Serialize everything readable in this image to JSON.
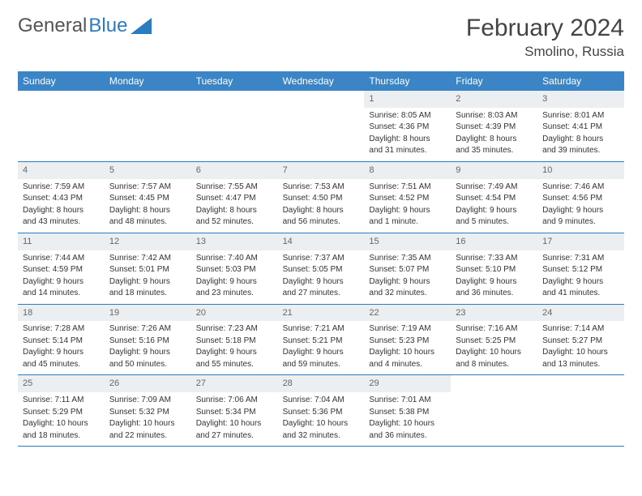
{
  "brand": {
    "part1": "General",
    "part2": "Blue"
  },
  "title": "February 2024",
  "location": "Smolino, Russia",
  "colors": {
    "header_bg": "#3b85c6",
    "row_border": "#2b7bbf",
    "daynum_bg": "#eceff1",
    "text": "#333333"
  },
  "weekdays": [
    "Sunday",
    "Monday",
    "Tuesday",
    "Wednesday",
    "Thursday",
    "Friday",
    "Saturday"
  ],
  "weeks": [
    [
      {
        "empty": true
      },
      {
        "empty": true
      },
      {
        "empty": true
      },
      {
        "empty": true
      },
      {
        "n": "1",
        "sr": "Sunrise: 8:05 AM",
        "ss": "Sunset: 4:36 PM",
        "d1": "Daylight: 8 hours",
        "d2": "and 31 minutes."
      },
      {
        "n": "2",
        "sr": "Sunrise: 8:03 AM",
        "ss": "Sunset: 4:39 PM",
        "d1": "Daylight: 8 hours",
        "d2": "and 35 minutes."
      },
      {
        "n": "3",
        "sr": "Sunrise: 8:01 AM",
        "ss": "Sunset: 4:41 PM",
        "d1": "Daylight: 8 hours",
        "d2": "and 39 minutes."
      }
    ],
    [
      {
        "n": "4",
        "sr": "Sunrise: 7:59 AM",
        "ss": "Sunset: 4:43 PM",
        "d1": "Daylight: 8 hours",
        "d2": "and 43 minutes."
      },
      {
        "n": "5",
        "sr": "Sunrise: 7:57 AM",
        "ss": "Sunset: 4:45 PM",
        "d1": "Daylight: 8 hours",
        "d2": "and 48 minutes."
      },
      {
        "n": "6",
        "sr": "Sunrise: 7:55 AM",
        "ss": "Sunset: 4:47 PM",
        "d1": "Daylight: 8 hours",
        "d2": "and 52 minutes."
      },
      {
        "n": "7",
        "sr": "Sunrise: 7:53 AM",
        "ss": "Sunset: 4:50 PM",
        "d1": "Daylight: 8 hours",
        "d2": "and 56 minutes."
      },
      {
        "n": "8",
        "sr": "Sunrise: 7:51 AM",
        "ss": "Sunset: 4:52 PM",
        "d1": "Daylight: 9 hours",
        "d2": "and 1 minute."
      },
      {
        "n": "9",
        "sr": "Sunrise: 7:49 AM",
        "ss": "Sunset: 4:54 PM",
        "d1": "Daylight: 9 hours",
        "d2": "and 5 minutes."
      },
      {
        "n": "10",
        "sr": "Sunrise: 7:46 AM",
        "ss": "Sunset: 4:56 PM",
        "d1": "Daylight: 9 hours",
        "d2": "and 9 minutes."
      }
    ],
    [
      {
        "n": "11",
        "sr": "Sunrise: 7:44 AM",
        "ss": "Sunset: 4:59 PM",
        "d1": "Daylight: 9 hours",
        "d2": "and 14 minutes."
      },
      {
        "n": "12",
        "sr": "Sunrise: 7:42 AM",
        "ss": "Sunset: 5:01 PM",
        "d1": "Daylight: 9 hours",
        "d2": "and 18 minutes."
      },
      {
        "n": "13",
        "sr": "Sunrise: 7:40 AM",
        "ss": "Sunset: 5:03 PM",
        "d1": "Daylight: 9 hours",
        "d2": "and 23 minutes."
      },
      {
        "n": "14",
        "sr": "Sunrise: 7:37 AM",
        "ss": "Sunset: 5:05 PM",
        "d1": "Daylight: 9 hours",
        "d2": "and 27 minutes."
      },
      {
        "n": "15",
        "sr": "Sunrise: 7:35 AM",
        "ss": "Sunset: 5:07 PM",
        "d1": "Daylight: 9 hours",
        "d2": "and 32 minutes."
      },
      {
        "n": "16",
        "sr": "Sunrise: 7:33 AM",
        "ss": "Sunset: 5:10 PM",
        "d1": "Daylight: 9 hours",
        "d2": "and 36 minutes."
      },
      {
        "n": "17",
        "sr": "Sunrise: 7:31 AM",
        "ss": "Sunset: 5:12 PM",
        "d1": "Daylight: 9 hours",
        "d2": "and 41 minutes."
      }
    ],
    [
      {
        "n": "18",
        "sr": "Sunrise: 7:28 AM",
        "ss": "Sunset: 5:14 PM",
        "d1": "Daylight: 9 hours",
        "d2": "and 45 minutes."
      },
      {
        "n": "19",
        "sr": "Sunrise: 7:26 AM",
        "ss": "Sunset: 5:16 PM",
        "d1": "Daylight: 9 hours",
        "d2": "and 50 minutes."
      },
      {
        "n": "20",
        "sr": "Sunrise: 7:23 AM",
        "ss": "Sunset: 5:18 PM",
        "d1": "Daylight: 9 hours",
        "d2": "and 55 minutes."
      },
      {
        "n": "21",
        "sr": "Sunrise: 7:21 AM",
        "ss": "Sunset: 5:21 PM",
        "d1": "Daylight: 9 hours",
        "d2": "and 59 minutes."
      },
      {
        "n": "22",
        "sr": "Sunrise: 7:19 AM",
        "ss": "Sunset: 5:23 PM",
        "d1": "Daylight: 10 hours",
        "d2": "and 4 minutes."
      },
      {
        "n": "23",
        "sr": "Sunrise: 7:16 AM",
        "ss": "Sunset: 5:25 PM",
        "d1": "Daylight: 10 hours",
        "d2": "and 8 minutes."
      },
      {
        "n": "24",
        "sr": "Sunrise: 7:14 AM",
        "ss": "Sunset: 5:27 PM",
        "d1": "Daylight: 10 hours",
        "d2": "and 13 minutes."
      }
    ],
    [
      {
        "n": "25",
        "sr": "Sunrise: 7:11 AM",
        "ss": "Sunset: 5:29 PM",
        "d1": "Daylight: 10 hours",
        "d2": "and 18 minutes."
      },
      {
        "n": "26",
        "sr": "Sunrise: 7:09 AM",
        "ss": "Sunset: 5:32 PM",
        "d1": "Daylight: 10 hours",
        "d2": "and 22 minutes."
      },
      {
        "n": "27",
        "sr": "Sunrise: 7:06 AM",
        "ss": "Sunset: 5:34 PM",
        "d1": "Daylight: 10 hours",
        "d2": "and 27 minutes."
      },
      {
        "n": "28",
        "sr": "Sunrise: 7:04 AM",
        "ss": "Sunset: 5:36 PM",
        "d1": "Daylight: 10 hours",
        "d2": "and 32 minutes."
      },
      {
        "n": "29",
        "sr": "Sunrise: 7:01 AM",
        "ss": "Sunset: 5:38 PM",
        "d1": "Daylight: 10 hours",
        "d2": "and 36 minutes."
      },
      {
        "empty": true
      },
      {
        "empty": true
      }
    ]
  ]
}
